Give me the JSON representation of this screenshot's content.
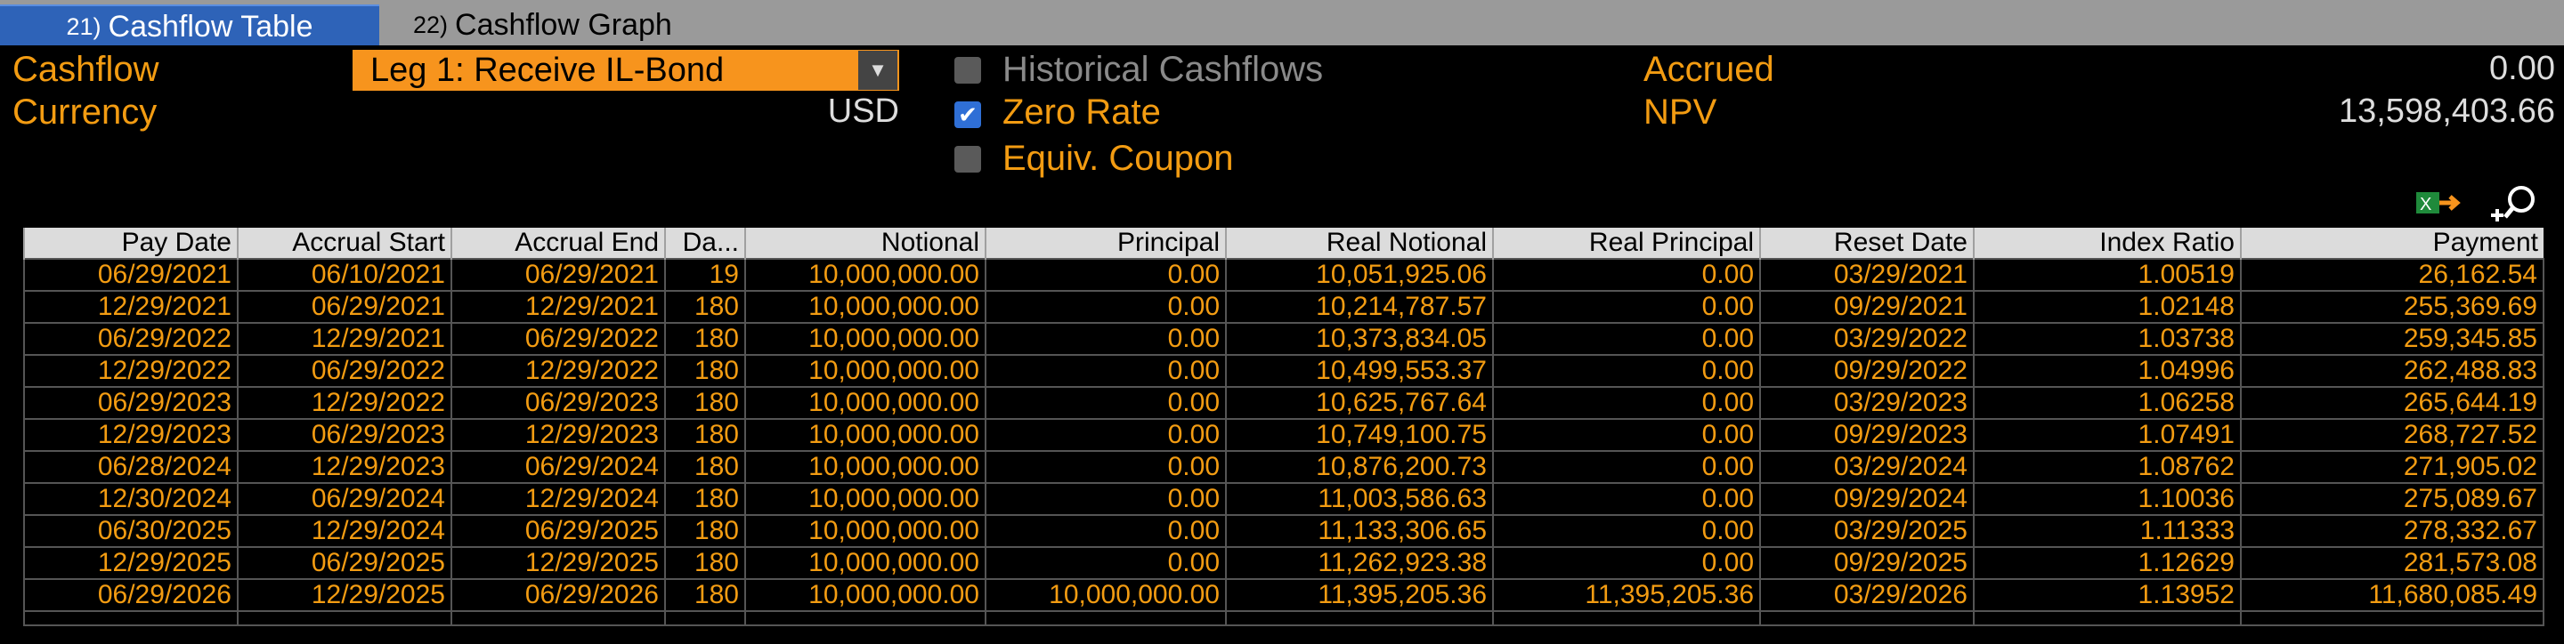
{
  "tabs": [
    {
      "num": "21)",
      "label": "Cashflow Table"
    },
    {
      "num": "22)",
      "label": "Cashflow Graph"
    }
  ],
  "header": {
    "cashflow_label": "Cashflow",
    "leg_selected": "Leg 1: Receive IL-Bond",
    "currency_label": "Currency",
    "currency_value": "USD",
    "historical_label": "Historical Cashflows",
    "zero_rate_label": "Zero Rate",
    "equiv_coupon_label": "Equiv. Coupon",
    "accrued_label": "Accrued",
    "accrued_value": "0.00",
    "npv_label": "NPV",
    "npv_value": "13,598,403.66"
  },
  "table": {
    "columns": [
      "Pay Date",
      "Accrual Start",
      "Accrual End",
      "Da...",
      "Notional",
      "Principal",
      "Real Notional",
      "Real Principal",
      "Reset Date",
      "Index Ratio",
      "Payment"
    ],
    "rows": [
      [
        "06/29/2021",
        "06/10/2021",
        "06/29/2021",
        "19",
        "10,000,000.00",
        "0.00",
        "10,051,925.06",
        "0.00",
        "03/29/2021",
        "1.00519",
        "26,162.54"
      ],
      [
        "12/29/2021",
        "06/29/2021",
        "12/29/2021",
        "180",
        "10,000,000.00",
        "0.00",
        "10,214,787.57",
        "0.00",
        "09/29/2021",
        "1.02148",
        "255,369.69"
      ],
      [
        "06/29/2022",
        "12/29/2021",
        "06/29/2022",
        "180",
        "10,000,000.00",
        "0.00",
        "10,373,834.05",
        "0.00",
        "03/29/2022",
        "1.03738",
        "259,345.85"
      ],
      [
        "12/29/2022",
        "06/29/2022",
        "12/29/2022",
        "180",
        "10,000,000.00",
        "0.00",
        "10,499,553.37",
        "0.00",
        "09/29/2022",
        "1.04996",
        "262,488.83"
      ],
      [
        "06/29/2023",
        "12/29/2022",
        "06/29/2023",
        "180",
        "10,000,000.00",
        "0.00",
        "10,625,767.64",
        "0.00",
        "03/29/2023",
        "1.06258",
        "265,644.19"
      ],
      [
        "12/29/2023",
        "06/29/2023",
        "12/29/2023",
        "180",
        "10,000,000.00",
        "0.00",
        "10,749,100.75",
        "0.00",
        "09/29/2023",
        "1.07491",
        "268,727.52"
      ],
      [
        "06/28/2024",
        "12/29/2023",
        "06/29/2024",
        "180",
        "10,000,000.00",
        "0.00",
        "10,876,200.73",
        "0.00",
        "03/29/2024",
        "1.08762",
        "271,905.02"
      ],
      [
        "12/30/2024",
        "06/29/2024",
        "12/29/2024",
        "180",
        "10,000,000.00",
        "0.00",
        "11,003,586.63",
        "0.00",
        "09/29/2024",
        "1.10036",
        "275,089.67"
      ],
      [
        "06/30/2025",
        "12/29/2024",
        "06/29/2025",
        "180",
        "10,000,000.00",
        "0.00",
        "11,133,306.65",
        "0.00",
        "03/29/2025",
        "1.11333",
        "278,332.67"
      ],
      [
        "12/29/2025",
        "06/29/2025",
        "12/29/2025",
        "180",
        "10,000,000.00",
        "0.00",
        "11,262,923.38",
        "0.00",
        "09/29/2025",
        "1.12629",
        "281,573.08"
      ],
      [
        "06/29/2026",
        "12/29/2025",
        "06/29/2026",
        "180",
        "10,000,000.00",
        "10,000,000.00",
        "11,395,205.36",
        "11,395,205.36",
        "03/29/2026",
        "1.13952",
        "11,680,085.49"
      ]
    ]
  },
  "icons": {
    "export": "excel-export-icon",
    "zoom": "zoom-search-icon",
    "dropdown": "chevron-down-icon",
    "check": "checkmark-icon"
  },
  "colors": {
    "accent": "#f39c12",
    "tab_active": "#2e63b8",
    "dropdown": "#f7941d"
  }
}
